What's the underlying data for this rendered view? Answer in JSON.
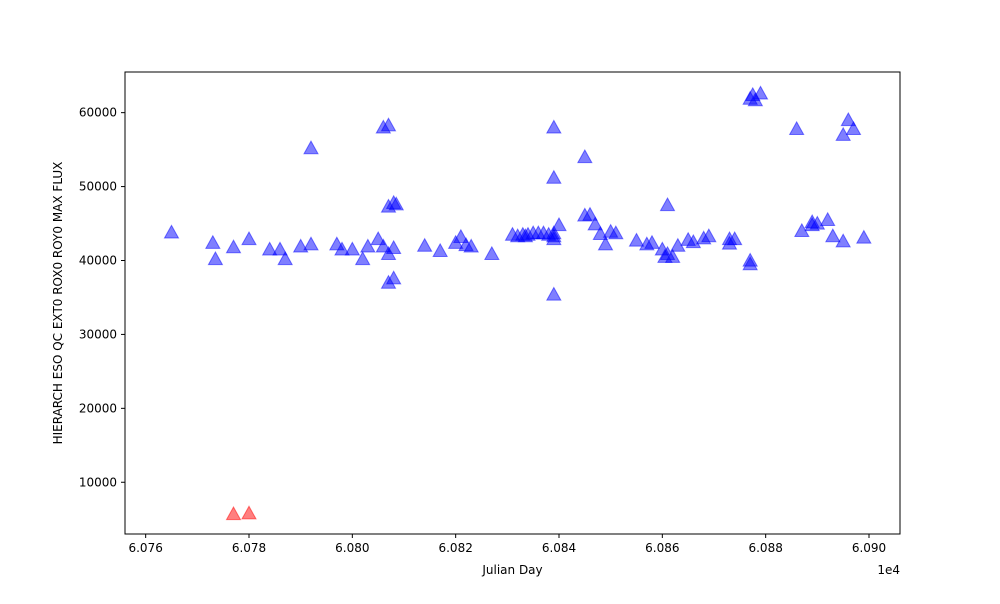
{
  "chart_data": {
    "type": "scatter",
    "title": "",
    "xlabel": "Julian Day",
    "ylabel": "HIERARCH ESO QC EXT0 ROX0 ROY0 MAX FLUX",
    "x_offset_label": "1e4",
    "xlim": [
      60756,
      60906
    ],
    "ylim": [
      3000,
      65500
    ],
    "x_ticks": [
      60760,
      60780,
      60800,
      60820,
      60840,
      60860,
      60880,
      60900
    ],
    "x_tick_labels": [
      "6.076",
      "6.078",
      "6.080",
      "6.082",
      "6.084",
      "6.086",
      "6.088",
      "6.090"
    ],
    "y_ticks": [
      10000,
      20000,
      30000,
      40000,
      50000,
      60000
    ],
    "y_tick_labels": [
      "10000",
      "20000",
      "30000",
      "40000",
      "50000",
      "60000"
    ],
    "grid": false,
    "marker": "triangle-up",
    "series": [
      {
        "color": "#0000ff",
        "points": [
          [
            60765,
            43800
          ],
          [
            60773,
            42400
          ],
          [
            60773.5,
            40200
          ],
          [
            60777,
            41800
          ],
          [
            60780,
            42900
          ],
          [
            60784,
            41500
          ],
          [
            60786,
            41500
          ],
          [
            60787,
            40200
          ],
          [
            60790,
            41900
          ],
          [
            60792,
            42200
          ],
          [
            60792,
            55200
          ],
          [
            60797,
            42200
          ],
          [
            60798,
            41500
          ],
          [
            60800,
            41500
          ],
          [
            60802,
            40200
          ],
          [
            60803,
            41900
          ],
          [
            60805,
            42900
          ],
          [
            60806,
            41900
          ],
          [
            60806,
            58000
          ],
          [
            60807,
            58300
          ],
          [
            60807,
            47300
          ],
          [
            60807,
            40900
          ],
          [
            60807,
            37000
          ],
          [
            60808,
            41700
          ],
          [
            60808,
            47800
          ],
          [
            60808,
            37600
          ],
          [
            60808.5,
            47600
          ],
          [
            60814,
            42000
          ],
          [
            60817,
            41300
          ],
          [
            60820,
            42400
          ],
          [
            60821,
            43200
          ],
          [
            60822,
            42100
          ],
          [
            60823,
            41900
          ],
          [
            60827,
            40900
          ],
          [
            60831,
            43500
          ],
          [
            60832,
            43300
          ],
          [
            60833,
            43500
          ],
          [
            60833.5,
            43300
          ],
          [
            60834,
            43500
          ],
          [
            60835,
            43700
          ],
          [
            60836,
            43700
          ],
          [
            60837,
            43700
          ],
          [
            60838,
            43500
          ],
          [
            60839,
            43300
          ],
          [
            60839,
            43700
          ],
          [
            60839,
            42900
          ],
          [
            60839,
            51200
          ],
          [
            60839,
            58000
          ],
          [
            60839,
            35400
          ],
          [
            60840,
            44800
          ],
          [
            60845,
            54000
          ],
          [
            60845,
            46100
          ],
          [
            60846,
            46200
          ],
          [
            60847,
            44900
          ],
          [
            60848,
            43600
          ],
          [
            60849,
            42200
          ],
          [
            60850,
            43900
          ],
          [
            60851,
            43700
          ],
          [
            60855,
            42700
          ],
          [
            60857,
            42200
          ],
          [
            60858,
            42400
          ],
          [
            60860,
            41500
          ],
          [
            60860.5,
            40500
          ],
          [
            60861,
            40900
          ],
          [
            60861,
            47500
          ],
          [
            60862,
            40500
          ],
          [
            60863,
            42000
          ],
          [
            60865,
            42800
          ],
          [
            60866,
            42500
          ],
          [
            60868,
            43000
          ],
          [
            60869,
            43300
          ],
          [
            60873,
            42300
          ],
          [
            60873,
            42900
          ],
          [
            60874,
            42900
          ],
          [
            60877,
            39500
          ],
          [
            60877,
            40000
          ],
          [
            60877,
            61900
          ],
          [
            60877.5,
            62400
          ],
          [
            60878,
            61700
          ],
          [
            60879,
            62600
          ],
          [
            60886,
            57800
          ],
          [
            60887,
            44000
          ],
          [
            60889,
            44800
          ],
          [
            60889,
            45200
          ],
          [
            60890,
            45000
          ],
          [
            60892,
            45500
          ],
          [
            60893,
            43300
          ],
          [
            60895,
            42600
          ],
          [
            60895,
            57000
          ],
          [
            60896,
            59000
          ],
          [
            60897,
            57800
          ],
          [
            60899,
            43100
          ]
        ]
      },
      {
        "color": "#ff0000",
        "points": [
          [
            60777,
            5700
          ],
          [
            60780,
            5800
          ]
        ]
      }
    ]
  }
}
